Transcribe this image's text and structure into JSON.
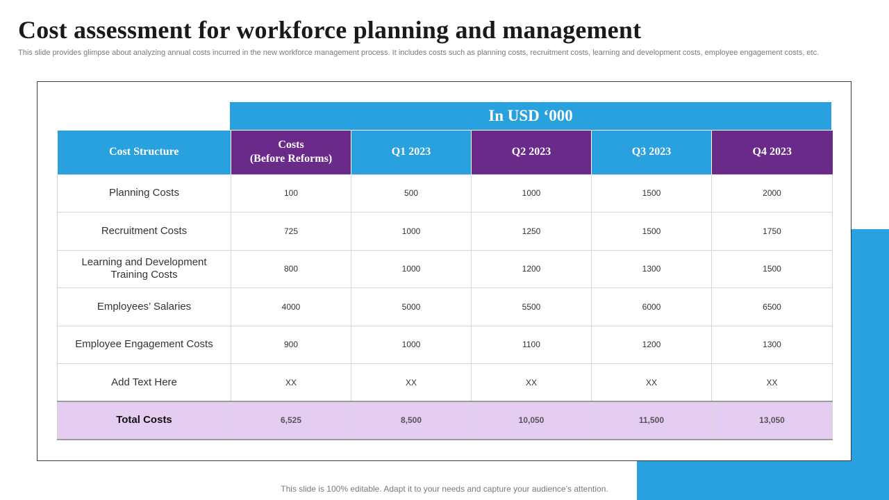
{
  "slide": {
    "title": "Cost assessment for workforce planning and management",
    "subtitle": "This slide provides glimpse about analyzing annual costs incurred in the new workforce management process. It includes costs such as planning costs, recruitment costs, learning and development costs, employee engagement costs, etc.",
    "footer": "This slide is 100% editable. Adapt it to your needs and capture your audience’s attention."
  },
  "table": {
    "banner": "In USD ‘000",
    "headers": {
      "cost_structure": "Cost Structure",
      "before_line1": "Costs",
      "before_line2": "(Before Reforms)",
      "q1": "Q1 2023",
      "q2": "Q2 2023",
      "q3": "Q3 2023",
      "q4": "Q4 2023"
    },
    "rows": [
      {
        "label": "Planning Costs",
        "before": "100",
        "q1": "500",
        "q2": "1000",
        "q3": "1500",
        "q4": "2000"
      },
      {
        "label": "Recruitment Costs",
        "before": "725",
        "q1": "1000",
        "q2": "1250",
        "q3": "1500",
        "q4": "1750"
      },
      {
        "label_line1": "Learning and Development",
        "label_line2": "Training Costs",
        "before": "800",
        "q1": "1000",
        "q2": "1200",
        "q3": "1300",
        "q4": "1500"
      },
      {
        "label": "Employees’ Salaries",
        "before": "4000",
        "q1": "5000",
        "q2": "5500",
        "q3": "6000",
        "q4": "6500"
      },
      {
        "label": "Employee Engagement Costs",
        "before": "900",
        "q1": "1000",
        "q2": "1100",
        "q3": "1200",
        "q4": "1300"
      },
      {
        "label": "Add Text Here",
        "before": "XX",
        "q1": "XX",
        "q2": "XX",
        "q3": "XX",
        "q4": "XX"
      }
    ],
    "total": {
      "label": "Total Costs",
      "before": "6,525",
      "q1": "8,500",
      "q2": "10,050",
      "q3": "11,500",
      "q4": "13,050"
    }
  },
  "colors": {
    "header_blue": "#2aa1df",
    "header_purple": "#6a2a8a",
    "total_row_bg": "#e5ccf1",
    "accent_block": "#2aa1df"
  }
}
